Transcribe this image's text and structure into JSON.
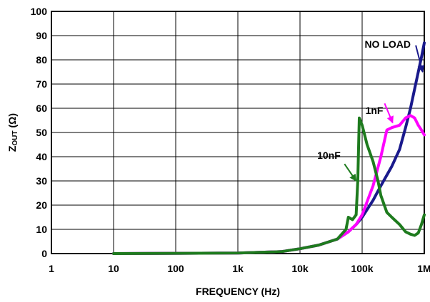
{
  "chart_data": {
    "type": "line",
    "xlabel": "FREQUENCY (Hz)",
    "ylabel_main": "Z",
    "ylabel_sub": "OUT",
    "ylabel_unit": " (Ω)",
    "xscale": "log",
    "xlim": [
      1,
      1000000
    ],
    "ylim": [
      0,
      100
    ],
    "grid": true,
    "x_ticks": [
      {
        "value": 1,
        "label": "1"
      },
      {
        "value": 10,
        "label": "10"
      },
      {
        "value": 100,
        "label": "100"
      },
      {
        "value": 1000,
        "label": "1k"
      },
      {
        "value": 10000,
        "label": "10k"
      },
      {
        "value": 100000,
        "label": "100k"
      },
      {
        "value": 1000000,
        "label": "1M"
      }
    ],
    "y_ticks": [
      0,
      10,
      20,
      30,
      40,
      50,
      60,
      70,
      80,
      90,
      100
    ],
    "series": [
      {
        "name": "NO LOAD",
        "color": "#1a1a8c",
        "points": [
          [
            10,
            0
          ],
          [
            1000,
            0.2
          ],
          [
            5000,
            0.8
          ],
          [
            10000,
            2
          ],
          [
            20000,
            3.5
          ],
          [
            40000,
            6
          ],
          [
            60000,
            9
          ],
          [
            80000,
            12
          ],
          [
            100000,
            15
          ],
          [
            150000,
            22
          ],
          [
            200000,
            28
          ],
          [
            300000,
            36
          ],
          [
            400000,
            43
          ],
          [
            500000,
            52
          ],
          [
            600000,
            60
          ],
          [
            700000,
            68
          ],
          [
            800000,
            75
          ],
          [
            900000,
            81
          ],
          [
            1000000,
            87
          ]
        ]
      },
      {
        "name": "1nF",
        "color": "#ff00ff",
        "points": [
          [
            10,
            0
          ],
          [
            1000,
            0.2
          ],
          [
            5000,
            0.8
          ],
          [
            10000,
            2
          ],
          [
            20000,
            3.5
          ],
          [
            40000,
            6
          ],
          [
            60000,
            9
          ],
          [
            80000,
            12
          ],
          [
            100000,
            16
          ],
          [
            150000,
            28
          ],
          [
            200000,
            40
          ],
          [
            250000,
            51
          ],
          [
            300000,
            52
          ],
          [
            400000,
            53
          ],
          [
            500000,
            56
          ],
          [
            600000,
            57
          ],
          [
            700000,
            56
          ],
          [
            800000,
            53
          ],
          [
            900000,
            51
          ],
          [
            1000000,
            49
          ]
        ]
      },
      {
        "name": "10nF",
        "color": "#1e7b1e",
        "points": [
          [
            10,
            0
          ],
          [
            1000,
            0.2
          ],
          [
            5000,
            0.8
          ],
          [
            10000,
            2
          ],
          [
            20000,
            3.5
          ],
          [
            40000,
            6
          ],
          [
            55000,
            10
          ],
          [
            60000,
            15
          ],
          [
            70000,
            14
          ],
          [
            80000,
            16
          ],
          [
            85000,
            30
          ],
          [
            90000,
            56
          ],
          [
            100000,
            53
          ],
          [
            120000,
            45
          ],
          [
            150000,
            38
          ],
          [
            180000,
            30
          ],
          [
            200000,
            24
          ],
          [
            250000,
            17
          ],
          [
            300000,
            15
          ],
          [
            400000,
            12
          ],
          [
            500000,
            9
          ],
          [
            600000,
            8
          ],
          [
            700000,
            7.5
          ],
          [
            800000,
            8.5
          ],
          [
            900000,
            12
          ],
          [
            1000000,
            16
          ]
        ]
      }
    ],
    "annotations": [
      {
        "series": "NO LOAD",
        "text": "NO LOAD",
        "arrow_from": [
          730000,
          86
        ],
        "arrow_to": [
          940000,
          75
        ]
      },
      {
        "series": "1nF",
        "text": "1nF",
        "arrow_from": [
          230000,
          62
        ],
        "arrow_to": [
          310000,
          54
        ]
      },
      {
        "series": "10nF",
        "text": "10nF",
        "arrow_from": [
          52000,
          37
        ],
        "arrow_to": [
          80000,
          30
        ]
      }
    ]
  }
}
